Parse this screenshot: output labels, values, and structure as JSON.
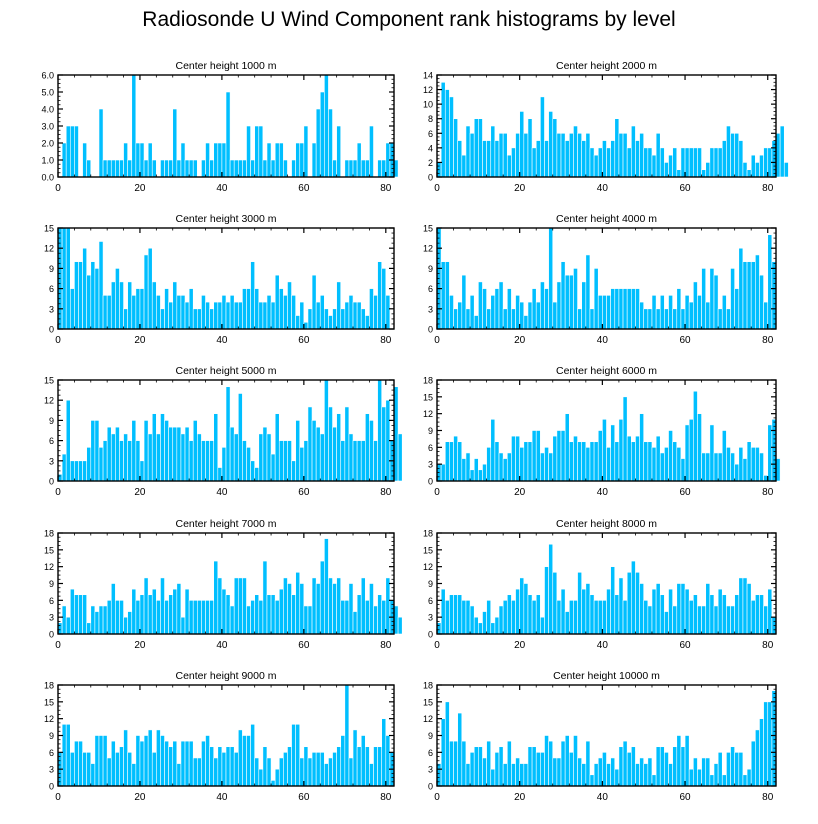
{
  "title": "Radiosonde U Wind Component rank histograms by level",
  "colors": {
    "bar": "#00bfff",
    "bar_edge": "#ffffff",
    "axis": "#000000"
  },
  "chart_data": [
    {
      "type": "bar",
      "title": "Center height 1000 m",
      "xlim": [
        0,
        82
      ],
      "ylim": [
        0,
        6
      ],
      "xticks": [
        0,
        20,
        40,
        60,
        80
      ],
      "yticks": [
        "0.0",
        "1.0",
        "2.0",
        "3.0",
        "4.0",
        "5.0",
        "6.0"
      ],
      "values": [
        0,
        2,
        3,
        3,
        3,
        0,
        2,
        1,
        0,
        0,
        4,
        1,
        1,
        1,
        1,
        1,
        2,
        1,
        6,
        2,
        2,
        1,
        2,
        1,
        0,
        1,
        1,
        1,
        4,
        1,
        2,
        1,
        1,
        1,
        0,
        1,
        2,
        1,
        2,
        2,
        2,
        5,
        1,
        1,
        1,
        1,
        3,
        1,
        3,
        3,
        1,
        2,
        1,
        2,
        2,
        1,
        0,
        1,
        2,
        2,
        3,
        0,
        2,
        4,
        5,
        6,
        4,
        1,
        3,
        0,
        1,
        1,
        1,
        2,
        1,
        1,
        3,
        0,
        1,
        1,
        2,
        2,
        1
      ]
    },
    {
      "type": "bar",
      "title": "Center height 2000 m",
      "xlim": [
        0,
        82
      ],
      "ylim": [
        0,
        14
      ],
      "xticks": [
        0,
        20,
        40,
        60,
        80
      ],
      "yticks": [
        "0",
        "2",
        "4",
        "6",
        "8",
        "10",
        "12",
        "14"
      ],
      "values": [
        2,
        13,
        12,
        11,
        8,
        5,
        3,
        7,
        6,
        8,
        8,
        5,
        5,
        7,
        5,
        6,
        6,
        3,
        4,
        6,
        9,
        6,
        8,
        4,
        5,
        11,
        5,
        9,
        8,
        6,
        6,
        5,
        6,
        7,
        6,
        5,
        6,
        4,
        3,
        4,
        5,
        4,
        5,
        8,
        6,
        6,
        4,
        7,
        5,
        6,
        4,
        4,
        3,
        6,
        4,
        2,
        3,
        4,
        1,
        4,
        4,
        4,
        4,
        4,
        1,
        2,
        4,
        4,
        4,
        5,
        7,
        6,
        6,
        5,
        2,
        1,
        3,
        2,
        3,
        4,
        4,
        5,
        6,
        7,
        2
      ]
    },
    {
      "type": "bar",
      "title": "Center height 3000 m",
      "xlim": [
        0,
        82
      ],
      "ylim": [
        0,
        15
      ],
      "xticks": [
        0,
        20,
        40,
        60,
        80
      ],
      "yticks": [
        "0",
        "3",
        "6",
        "9",
        "12",
        "15"
      ],
      "values": [
        15,
        15,
        15,
        6,
        10,
        10,
        12,
        8,
        10,
        9,
        13,
        5,
        5,
        7,
        9,
        7,
        3,
        7,
        5,
        6,
        6,
        11,
        12,
        7,
        5,
        3,
        6,
        4,
        7,
        5,
        5,
        4,
        6,
        3,
        3,
        5,
        4,
        3,
        4,
        4,
        5,
        4,
        5,
        4,
        4,
        6,
        6,
        10,
        6,
        4,
        4,
        5,
        4,
        8,
        6,
        5,
        7,
        5,
        2,
        4,
        1,
        3,
        8,
        4,
        5,
        3,
        2,
        3,
        7,
        3,
        4,
        5,
        4,
        4,
        3,
        2,
        6,
        5,
        10,
        9,
        5
      ]
    },
    {
      "type": "bar",
      "title": "Center height 4000 m",
      "xlim": [
        0,
        82
      ],
      "ylim": [
        0,
        15
      ],
      "xticks": [
        0,
        20,
        40,
        60,
        80
      ],
      "yticks": [
        "0",
        "3",
        "6",
        "9",
        "12",
        "15"
      ],
      "values": [
        15,
        10,
        10,
        5,
        3,
        4,
        8,
        3,
        5,
        2,
        7,
        6,
        3,
        5,
        6,
        7,
        3,
        6,
        3,
        5,
        4,
        2,
        4,
        6,
        4,
        7,
        6,
        15,
        4,
        7,
        10,
        8,
        8,
        9,
        3,
        7,
        11,
        3,
        9,
        5,
        5,
        5,
        6,
        6,
        6,
        6,
        6,
        6,
        6,
        4,
        3,
        3,
        5,
        3,
        5,
        3,
        5,
        3,
        6,
        3,
        5,
        4,
        7,
        5,
        9,
        4,
        9,
        8,
        3,
        5,
        3,
        9,
        6,
        12,
        10,
        10,
        10,
        11,
        8,
        4,
        14,
        10
      ]
    },
    {
      "type": "bar",
      "title": "Center height 5000 m",
      "xlim": [
        0,
        82
      ],
      "ylim": [
        0,
        15
      ],
      "xticks": [
        0,
        20,
        40,
        60,
        80
      ],
      "yticks": [
        "0",
        "3",
        "6",
        "9",
        "12",
        "15"
      ],
      "values": [
        1,
        4,
        12,
        3,
        3,
        3,
        3,
        5,
        9,
        9,
        5,
        6,
        8,
        7,
        8,
        6,
        7,
        6,
        9,
        6,
        3,
        9,
        7,
        10,
        7,
        10,
        9,
        8,
        8,
        8,
        7,
        8,
        6,
        9,
        7,
        6,
        6,
        6,
        10,
        2,
        5,
        14,
        8,
        7,
        13,
        6,
        5,
        3,
        2,
        7,
        8,
        7,
        4,
        10,
        6,
        6,
        6,
        3,
        9,
        5,
        6,
        11,
        9,
        8,
        7,
        15,
        11,
        8,
        10,
        6,
        11,
        7,
        6,
        6,
        6,
        10,
        9,
        6,
        15,
        11,
        12,
        6,
        14,
        7
      ]
    },
    {
      "type": "bar",
      "title": "Center height 6000 m",
      "xlim": [
        0,
        82
      ],
      "ylim": [
        0,
        18
      ],
      "xticks": [
        0,
        20,
        40,
        60,
        80
      ],
      "yticks": [
        "0",
        "3",
        "6",
        "9",
        "12",
        "15",
        "18"
      ],
      "values": [
        3,
        3,
        7,
        7,
        8,
        7,
        4,
        5,
        2,
        4,
        2,
        3,
        6,
        11,
        7,
        5,
        4,
        5,
        8,
        8,
        6,
        7,
        7,
        9,
        9,
        5,
        6,
        5,
        8,
        9,
        9,
        12,
        7,
        8,
        7,
        7,
        6,
        7,
        7,
        9,
        11,
        6,
        10,
        7,
        11,
        15,
        8,
        7,
        8,
        12,
        7,
        7,
        6,
        8,
        5,
        6,
        9,
        7,
        6,
        4,
        10,
        11,
        16,
        12,
        5,
        5,
        10,
        5,
        5,
        9,
        6,
        5,
        3,
        6,
        4,
        7,
        6,
        6,
        5,
        1,
        10,
        11,
        4
      ]
    },
    {
      "type": "bar",
      "title": "Center height 7000 m",
      "xlim": [
        0,
        82
      ],
      "ylim": [
        0,
        18
      ],
      "xticks": [
        0,
        20,
        40,
        60,
        80
      ],
      "yticks": [
        "0",
        "3",
        "6",
        "9",
        "12",
        "15",
        "18"
      ],
      "values": [
        2,
        5,
        3,
        8,
        7,
        7,
        7,
        2,
        5,
        4,
        5,
        5,
        6,
        9,
        6,
        6,
        3,
        4,
        8,
        6,
        7,
        10,
        7,
        8,
        6,
        10,
        6,
        7,
        8,
        9,
        3,
        8,
        6,
        6,
        6,
        6,
        6,
        6,
        13,
        10,
        8,
        7,
        5,
        10,
        10,
        10,
        5,
        6,
        7,
        6,
        13,
        7,
        7,
        6,
        8,
        10,
        9,
        7,
        11,
        9,
        5,
        5,
        10,
        9,
        13,
        17,
        10,
        9,
        10,
        6,
        6,
        9,
        4,
        7,
        10,
        6,
        9,
        5,
        7,
        6,
        10,
        6,
        5,
        3
      ]
    },
    {
      "type": "bar",
      "title": "Center height 8000 m",
      "xlim": [
        0,
        82
      ],
      "ylim": [
        0,
        18
      ],
      "xticks": [
        0,
        20,
        40,
        60,
        80
      ],
      "yticks": [
        "0",
        "3",
        "6",
        "9",
        "12",
        "15",
        "18"
      ],
      "values": [
        2,
        8,
        6,
        7,
        7,
        7,
        6,
        6,
        5,
        3,
        2,
        4,
        6,
        2,
        3,
        5,
        6,
        7,
        6,
        8,
        10,
        9,
        7,
        6,
        7,
        3,
        12,
        16,
        11,
        6,
        8,
        4,
        6,
        6,
        11,
        8,
        9,
        7,
        6,
        6,
        6,
        8,
        12,
        7,
        10,
        6,
        11,
        13,
        11,
        9,
        6,
        5,
        8,
        9,
        7,
        4,
        8,
        5,
        9,
        9,
        8,
        6,
        7,
        5,
        5,
        9,
        7,
        5,
        8,
        7,
        5,
        5,
        7,
        10,
        10,
        9,
        6,
        7,
        7,
        5,
        8,
        3
      ]
    },
    {
      "type": "bar",
      "title": "Center height 9000 m",
      "xlim": [
        0,
        82
      ],
      "ylim": [
        0,
        18
      ],
      "xticks": [
        0,
        20,
        40,
        60,
        80
      ],
      "yticks": [
        "0",
        "3",
        "6",
        "9",
        "12",
        "15",
        "18"
      ],
      "values": [
        6,
        11,
        11,
        6,
        8,
        8,
        6,
        6,
        4,
        9,
        9,
        9,
        5,
        8,
        6,
        7,
        10,
        6,
        4,
        9,
        8,
        9,
        10,
        6,
        10,
        9,
        8,
        7,
        8,
        4,
        8,
        8,
        8,
        5,
        5,
        8,
        9,
        7,
        5,
        7,
        6,
        7,
        7,
        6,
        10,
        9,
        9,
        11,
        5,
        3,
        7,
        5,
        1,
        3,
        5,
        6,
        7,
        11,
        11,
        5,
        7,
        5,
        6,
        6,
        6,
        4,
        5,
        6,
        7,
        9,
        18,
        5,
        10,
        7,
        9,
        7,
        4,
        7,
        7,
        12,
        9,
        6
      ]
    },
    {
      "type": "bar",
      "title": "Center height 10000 m",
      "xlim": [
        0,
        82
      ],
      "ylim": [
        0,
        18
      ],
      "xticks": [
        0,
        20,
        40,
        60,
        80
      ],
      "yticks": [
        "0",
        "3",
        "6",
        "9",
        "12",
        "15",
        "18"
      ],
      "values": [
        4,
        12,
        15,
        8,
        8,
        13,
        8,
        4,
        6,
        7,
        7,
        5,
        8,
        3,
        6,
        7,
        4,
        8,
        4,
        5,
        4,
        4,
        7,
        7,
        6,
        6,
        9,
        8,
        5,
        5,
        8,
        9,
        6,
        9,
        5,
        4,
        8,
        2,
        4,
        5,
        6,
        4,
        5,
        3,
        7,
        8,
        6,
        7,
        4,
        5,
        4,
        5,
        2,
        7,
        7,
        6,
        4,
        7,
        9,
        7,
        9,
        3,
        5,
        3,
        5,
        5,
        2,
        4,
        6,
        2,
        6,
        7,
        6,
        6,
        2,
        3,
        8,
        10,
        12,
        15,
        15,
        17
      ]
    }
  ]
}
